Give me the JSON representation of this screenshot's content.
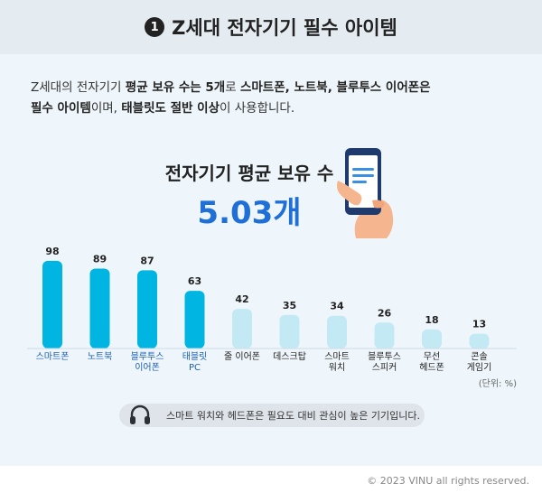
{
  "title": {
    "number": "1",
    "text": "Z세대 전자기기 필수 아이템"
  },
  "description": {
    "p1": "Z세대의 전자기기 ",
    "b1": "평균 보유 수는 5개",
    "p2": "로 ",
    "b2": "스마트폰, 노트북, 블루투스 이어폰은",
    "b3": "필수 아이템",
    "p3": "이며, ",
    "b4": "태블릿도 절반 이상",
    "p4": "이 사용합니다."
  },
  "average": {
    "label": "전자기기 평균 보유 수",
    "value": "5.03개"
  },
  "unit_note": "(단위: %)",
  "footnote": "스마트 워치와 헤드폰은 필요도 대비 관심이 높은 기기입니다.",
  "copyright": "© 2023 VINU all rights reserved.",
  "colors": {
    "primary_bar": "#00b5e2",
    "secondary_bar": "#c3e9f5",
    "accent_text": "#1f6fd8",
    "muted_label": "#1b5fb8"
  },
  "icons": {
    "phone": "smartphone-in-hand-icon",
    "note": "headphones-icon"
  },
  "chart_data": {
    "type": "bar",
    "title": "",
    "xlabel": "",
    "ylabel": "",
    "ylim": [
      0,
      100
    ],
    "categories": [
      [
        "스마트폰"
      ],
      [
        "노트북"
      ],
      [
        "블루투스",
        "이어폰"
      ],
      [
        "태블릿",
        "PC"
      ],
      [
        "줄 이어폰"
      ],
      [
        "데스크탑"
      ],
      [
        "스마트",
        "워치"
      ],
      [
        "블루투스",
        "스피커"
      ],
      [
        "무선",
        "헤드폰"
      ],
      [
        "콘솔",
        "게임기"
      ]
    ],
    "values": [
      98,
      89,
      87,
      63,
      42,
      35,
      34,
      26,
      18,
      13
    ],
    "highlighted": [
      true,
      true,
      true,
      true,
      false,
      false,
      false,
      false,
      false,
      false
    ],
    "grid": false,
    "legend": "none"
  }
}
